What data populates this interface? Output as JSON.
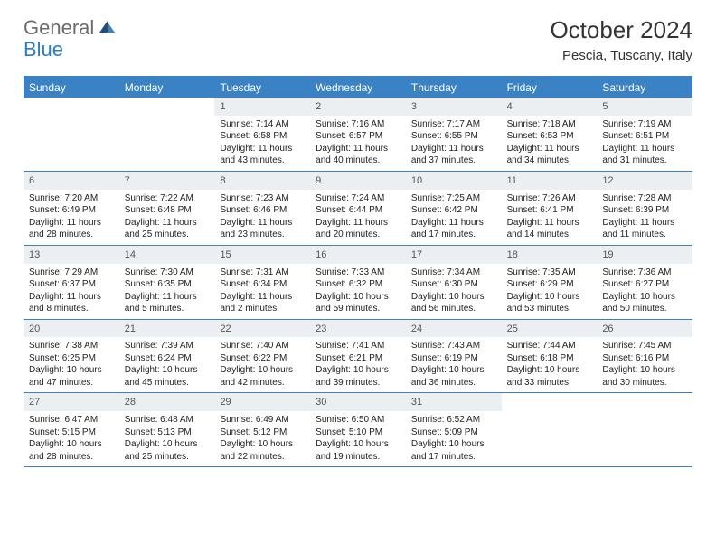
{
  "logo": {
    "text1": "General",
    "text2": "Blue"
  },
  "title": "October 2024",
  "location": "Pescia, Tuscany, Italy",
  "colors": {
    "header_bg": "#3a82c4",
    "header_text": "#ffffff",
    "daynum_bg": "#eceff1",
    "border": "#3a82c4",
    "logo_gray": "#6b6b6b",
    "logo_blue": "#2b7cc0"
  },
  "day_headers": [
    "Sunday",
    "Monday",
    "Tuesday",
    "Wednesday",
    "Thursday",
    "Friday",
    "Saturday"
  ],
  "weeks": [
    [
      null,
      null,
      {
        "n": "1",
        "sr": "Sunrise: 7:14 AM",
        "ss": "Sunset: 6:58 PM",
        "dl": "Daylight: 11 hours and 43 minutes."
      },
      {
        "n": "2",
        "sr": "Sunrise: 7:16 AM",
        "ss": "Sunset: 6:57 PM",
        "dl": "Daylight: 11 hours and 40 minutes."
      },
      {
        "n": "3",
        "sr": "Sunrise: 7:17 AM",
        "ss": "Sunset: 6:55 PM",
        "dl": "Daylight: 11 hours and 37 minutes."
      },
      {
        "n": "4",
        "sr": "Sunrise: 7:18 AM",
        "ss": "Sunset: 6:53 PM",
        "dl": "Daylight: 11 hours and 34 minutes."
      },
      {
        "n": "5",
        "sr": "Sunrise: 7:19 AM",
        "ss": "Sunset: 6:51 PM",
        "dl": "Daylight: 11 hours and 31 minutes."
      }
    ],
    [
      {
        "n": "6",
        "sr": "Sunrise: 7:20 AM",
        "ss": "Sunset: 6:49 PM",
        "dl": "Daylight: 11 hours and 28 minutes."
      },
      {
        "n": "7",
        "sr": "Sunrise: 7:22 AM",
        "ss": "Sunset: 6:48 PM",
        "dl": "Daylight: 11 hours and 25 minutes."
      },
      {
        "n": "8",
        "sr": "Sunrise: 7:23 AM",
        "ss": "Sunset: 6:46 PM",
        "dl": "Daylight: 11 hours and 23 minutes."
      },
      {
        "n": "9",
        "sr": "Sunrise: 7:24 AM",
        "ss": "Sunset: 6:44 PM",
        "dl": "Daylight: 11 hours and 20 minutes."
      },
      {
        "n": "10",
        "sr": "Sunrise: 7:25 AM",
        "ss": "Sunset: 6:42 PM",
        "dl": "Daylight: 11 hours and 17 minutes."
      },
      {
        "n": "11",
        "sr": "Sunrise: 7:26 AM",
        "ss": "Sunset: 6:41 PM",
        "dl": "Daylight: 11 hours and 14 minutes."
      },
      {
        "n": "12",
        "sr": "Sunrise: 7:28 AM",
        "ss": "Sunset: 6:39 PM",
        "dl": "Daylight: 11 hours and 11 minutes."
      }
    ],
    [
      {
        "n": "13",
        "sr": "Sunrise: 7:29 AM",
        "ss": "Sunset: 6:37 PM",
        "dl": "Daylight: 11 hours and 8 minutes."
      },
      {
        "n": "14",
        "sr": "Sunrise: 7:30 AM",
        "ss": "Sunset: 6:35 PM",
        "dl": "Daylight: 11 hours and 5 minutes."
      },
      {
        "n": "15",
        "sr": "Sunrise: 7:31 AM",
        "ss": "Sunset: 6:34 PM",
        "dl": "Daylight: 11 hours and 2 minutes."
      },
      {
        "n": "16",
        "sr": "Sunrise: 7:33 AM",
        "ss": "Sunset: 6:32 PM",
        "dl": "Daylight: 10 hours and 59 minutes."
      },
      {
        "n": "17",
        "sr": "Sunrise: 7:34 AM",
        "ss": "Sunset: 6:30 PM",
        "dl": "Daylight: 10 hours and 56 minutes."
      },
      {
        "n": "18",
        "sr": "Sunrise: 7:35 AM",
        "ss": "Sunset: 6:29 PM",
        "dl": "Daylight: 10 hours and 53 minutes."
      },
      {
        "n": "19",
        "sr": "Sunrise: 7:36 AM",
        "ss": "Sunset: 6:27 PM",
        "dl": "Daylight: 10 hours and 50 minutes."
      }
    ],
    [
      {
        "n": "20",
        "sr": "Sunrise: 7:38 AM",
        "ss": "Sunset: 6:25 PM",
        "dl": "Daylight: 10 hours and 47 minutes."
      },
      {
        "n": "21",
        "sr": "Sunrise: 7:39 AM",
        "ss": "Sunset: 6:24 PM",
        "dl": "Daylight: 10 hours and 45 minutes."
      },
      {
        "n": "22",
        "sr": "Sunrise: 7:40 AM",
        "ss": "Sunset: 6:22 PM",
        "dl": "Daylight: 10 hours and 42 minutes."
      },
      {
        "n": "23",
        "sr": "Sunrise: 7:41 AM",
        "ss": "Sunset: 6:21 PM",
        "dl": "Daylight: 10 hours and 39 minutes."
      },
      {
        "n": "24",
        "sr": "Sunrise: 7:43 AM",
        "ss": "Sunset: 6:19 PM",
        "dl": "Daylight: 10 hours and 36 minutes."
      },
      {
        "n": "25",
        "sr": "Sunrise: 7:44 AM",
        "ss": "Sunset: 6:18 PM",
        "dl": "Daylight: 10 hours and 33 minutes."
      },
      {
        "n": "26",
        "sr": "Sunrise: 7:45 AM",
        "ss": "Sunset: 6:16 PM",
        "dl": "Daylight: 10 hours and 30 minutes."
      }
    ],
    [
      {
        "n": "27",
        "sr": "Sunrise: 6:47 AM",
        "ss": "Sunset: 5:15 PM",
        "dl": "Daylight: 10 hours and 28 minutes."
      },
      {
        "n": "28",
        "sr": "Sunrise: 6:48 AM",
        "ss": "Sunset: 5:13 PM",
        "dl": "Daylight: 10 hours and 25 minutes."
      },
      {
        "n": "29",
        "sr": "Sunrise: 6:49 AM",
        "ss": "Sunset: 5:12 PM",
        "dl": "Daylight: 10 hours and 22 minutes."
      },
      {
        "n": "30",
        "sr": "Sunrise: 6:50 AM",
        "ss": "Sunset: 5:10 PM",
        "dl": "Daylight: 10 hours and 19 minutes."
      },
      {
        "n": "31",
        "sr": "Sunrise: 6:52 AM",
        "ss": "Sunset: 5:09 PM",
        "dl": "Daylight: 10 hours and 17 minutes."
      },
      null,
      null
    ]
  ]
}
